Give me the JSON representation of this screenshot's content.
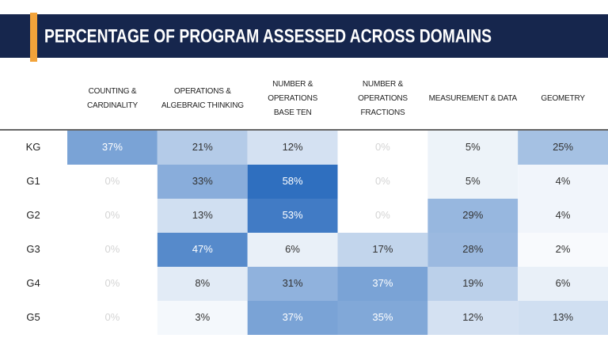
{
  "chart_data": {
    "type": "heatmap",
    "title": "PERCENTAGE OF PROGRAM ASSESSED ACROSS DOMAINS",
    "x": [
      "COUNTING &\nCARDINALITY",
      "OPERATIONS &\nALGEBRAIC THINKING",
      "NUMBER & OPERATIONS\nBASE TEN",
      "NUMBER & OPERATIONS\nFRACTIONS",
      "MEASUREMENT & DATA",
      "GEOMETRY"
    ],
    "y": [
      "KG",
      "G1",
      "G2",
      "G3",
      "G4",
      "G5"
    ],
    "values": [
      [
        37,
        21,
        12,
        0,
        5,
        25
      ],
      [
        0,
        33,
        58,
        0,
        5,
        4
      ],
      [
        0,
        13,
        53,
        0,
        29,
        4
      ],
      [
        0,
        47,
        6,
        17,
        28,
        2
      ],
      [
        0,
        8,
        31,
        37,
        19,
        6
      ],
      [
        0,
        3,
        37,
        35,
        12,
        13
      ]
    ],
    "value_labels": [
      [
        "37%",
        "21%",
        "12%",
        "0%",
        "5%",
        "25%"
      ],
      [
        "0%",
        "33%",
        "58%",
        "0%",
        "5%",
        "4%"
      ],
      [
        "0%",
        "13%",
        "53%",
        "0%",
        "29%",
        "4%"
      ],
      [
        "0%",
        "47%",
        "6%",
        "17%",
        "28%",
        "2%"
      ],
      [
        "0%",
        "8%",
        "31%",
        "37%",
        "19%",
        "6%"
      ],
      [
        "0%",
        "3%",
        "37%",
        "35%",
        "12%",
        "13%"
      ]
    ],
    "colormap": [
      "#ffffff",
      "#2f6fbf"
    ]
  }
}
